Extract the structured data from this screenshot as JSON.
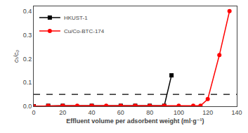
{
  "chart_data": {
    "type": "line",
    "xlabel": "Effluent volume per adsorbent weight (ml·g⁻¹)",
    "ylabel": "cₜ/c₀",
    "series": [
      {
        "name": "HKUST-1",
        "color": "#000000",
        "marker": "square",
        "line_style": "solid",
        "x": [
          0,
          10,
          20,
          40,
          60,
          70,
          80,
          90,
          95
        ],
        "values": [
          0.0,
          0.002,
          0.002,
          0.002,
          0.002,
          0.002,
          0.002,
          0.002,
          0.13
        ]
      },
      {
        "name": "Cu/Co-BTC-174",
        "color": "#ff0000",
        "marker": "circle",
        "line_style": "solid",
        "x": [
          0,
          10,
          20,
          30,
          40,
          50,
          60,
          70,
          80,
          90,
          100,
          110,
          115,
          120,
          128,
          135
        ],
        "values": [
          0.0,
          0.002,
          0.002,
          0.002,
          0.002,
          0.002,
          0.002,
          0.002,
          0.002,
          0.002,
          0.002,
          0.002,
          0.002,
          0.03,
          0.215,
          0.4
        ]
      }
    ],
    "hlines": [
      {
        "y": 0.05,
        "color": "#000000",
        "line_style": "dashed"
      }
    ],
    "xlim": [
      0,
      140
    ],
    "xticks": [
      0,
      20,
      40,
      60,
      80,
      100,
      120,
      140
    ],
    "ylim": [
      0,
      0.42
    ],
    "yticks": [
      {
        "value": 0.0,
        "label": "0.0"
      },
      0.1,
      0.2,
      0.3,
      0.4
    ],
    "grid": false,
    "legend": "upper left"
  }
}
